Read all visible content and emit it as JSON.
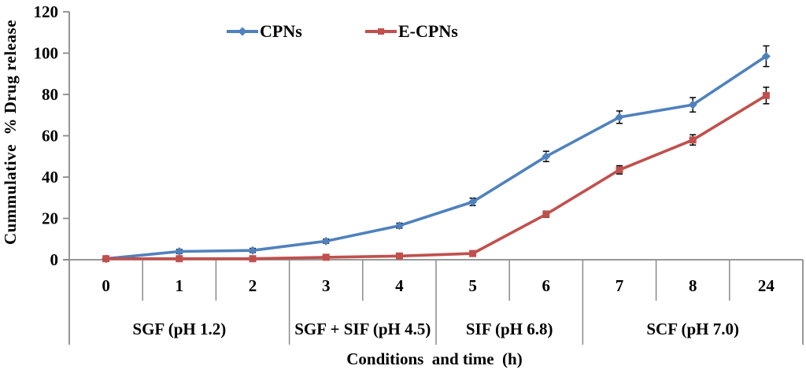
{
  "chart_data": {
    "type": "line",
    "title": "",
    "xlabel": "Conditions  and time  (h)",
    "ylabel": "Cummulative  % Drug release",
    "ylim": [
      0,
      120
    ],
    "y_ticks": [
      0,
      20,
      40,
      60,
      80,
      100,
      120
    ],
    "categories": [
      "0",
      "1",
      "2",
      "3",
      "4",
      "5",
      "6",
      "7",
      "8",
      "24"
    ],
    "condition_groups": [
      {
        "label": "SGF (pH 1.2)",
        "start": 0,
        "end": 2
      },
      {
        "label": "SGF + SIF (pH 4.5)",
        "start": 3,
        "end": 4
      },
      {
        "label": "SIF (pH 6.8)",
        "start": 5,
        "end": 6
      },
      {
        "label": "SCF (pH 7.0)",
        "start": 7,
        "end": 9
      }
    ],
    "series": [
      {
        "name": "CPNs",
        "color": "#4f81bd",
        "marker": "diamond",
        "values": [
          0.5,
          4,
          4.5,
          9,
          16.5,
          28,
          50,
          69,
          75,
          98.5
        ],
        "errors": [
          0.5,
          1,
          1,
          1,
          1.2,
          1.8,
          2.5,
          3,
          3.5,
          5
        ]
      },
      {
        "name": "E-CPNs",
        "color": "#c0504d",
        "marker": "square",
        "values": [
          0.5,
          0.5,
          0.5,
          1.2,
          1.8,
          3,
          22,
          43.5,
          58,
          79.5
        ],
        "errors": [
          0.3,
          0.3,
          0.3,
          0.4,
          0.5,
          0.6,
          1.5,
          2,
          2.5,
          4
        ]
      }
    ],
    "legend_position": "top-center",
    "grid": false,
    "error_bar_color": "#000000",
    "axis_color": "#8a8a8a",
    "text_color": "#000000"
  }
}
